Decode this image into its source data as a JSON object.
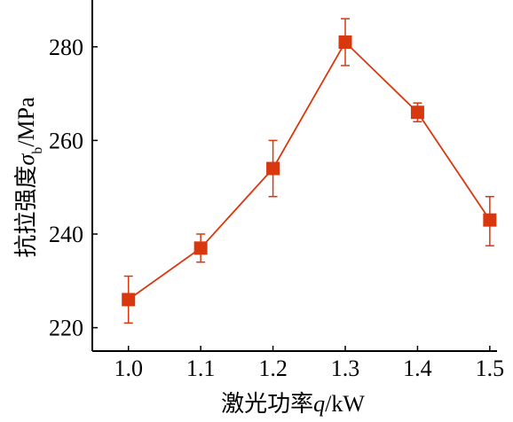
{
  "chart_data": {
    "type": "line",
    "x": [
      1.0,
      1.1,
      1.2,
      1.3,
      1.4,
      1.5
    ],
    "series": [
      {
        "values": [
          226,
          237,
          254,
          281,
          266,
          243
        ],
        "error_upper": [
          231,
          240,
          260,
          286,
          268,
          248
        ],
        "error_lower": [
          221,
          234,
          248,
          276,
          264,
          237.5
        ],
        "color": "#d9380f",
        "marker": "square"
      }
    ],
    "xlim": [
      0.95,
      1.51
    ],
    "ylim": [
      215,
      290
    ],
    "xticks": [
      "1.0",
      "1.1",
      "1.2",
      "1.3",
      "1.4",
      "1.5"
    ],
    "yticks": [
      "220",
      "240",
      "260",
      "280"
    ],
    "xlabel": {
      "prefix": "激光功率",
      "var": "q",
      "suffix": "/kW"
    },
    "ylabel": {
      "prefix": "抗拉强度",
      "var": "σ",
      "sub": "b",
      "suffix": "/MPa"
    },
    "grid": false,
    "axis_color": "#000000"
  }
}
